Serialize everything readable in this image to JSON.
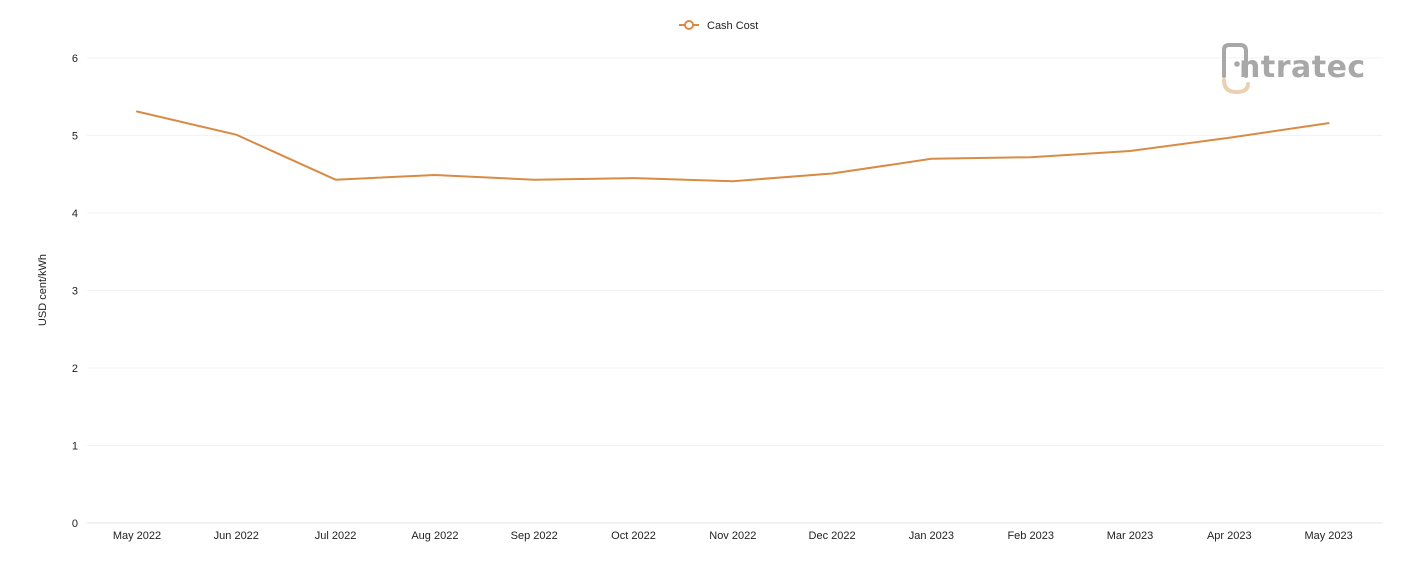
{
  "chart_data": {
    "type": "line",
    "title": "",
    "xlabel": "",
    "ylabel": "USD cent/kWh",
    "categories": [
      "May 2022",
      "Jun 2022",
      "Jul 2022",
      "Aug 2022",
      "Sep 2022",
      "Oct 2022",
      "Nov 2022",
      "Dec 2022",
      "Jan 2023",
      "Feb 2023",
      "Mar 2023",
      "Apr 2023",
      "May 2023"
    ],
    "series": [
      {
        "name": "Cash Cost",
        "color": "#d98b45",
        "values": [
          5.31,
          5.01,
          4.43,
          4.49,
          4.43,
          4.45,
          4.41,
          4.51,
          4.7,
          4.72,
          4.8,
          4.97,
          5.16
        ]
      }
    ],
    "ylim": [
      0,
      6
    ],
    "yticks": [
      "0",
      "1",
      "2",
      "3",
      "4",
      "5",
      "6"
    ],
    "grid": true,
    "legend": "top-center",
    "watermark": {
      "text": "intratec",
      "icon": "intratec-logo-icon"
    }
  }
}
